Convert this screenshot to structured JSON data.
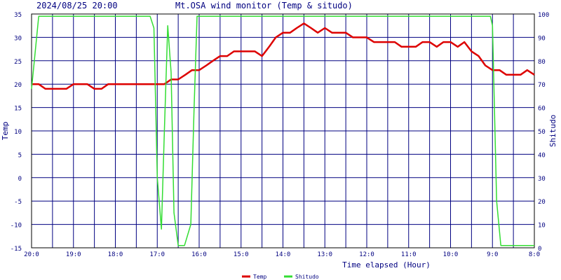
{
  "header": {
    "timestamp": "2024/08/25 20:00",
    "title": "Mt.OSA wind monitor (Temp & situdo)"
  },
  "chart_data": {
    "type": "line",
    "ylabel_left": "Temp",
    "ylabel_right": "Shitudo",
    "xlabel": "Time elapsed (Hour)",
    "x_tick_labels": [
      "20:0",
      "19:0",
      "18:0",
      "17:0",
      "16:0",
      "15:0",
      "14:0",
      "13:0",
      "12:0",
      "11:0",
      "10:0",
      "9:0",
      "8:0"
    ],
    "x_range": [
      20,
      8
    ],
    "grid": true,
    "ylim_left": [
      -15,
      35
    ],
    "yticks_left": [
      "35",
      "30",
      "25",
      "20",
      "15",
      "10",
      "5",
      "0",
      "-5",
      "-10",
      "-15"
    ],
    "ylim_right": [
      0,
      100
    ],
    "yticks_right": [
      "100",
      "90",
      "80",
      "70",
      "60",
      "50",
      "40",
      "30",
      "20",
      "10",
      "0"
    ],
    "legend_position": "bottom-center",
    "colors": {
      "background": "#ffffff",
      "plot_frame": "#000000",
      "grid": "#000080",
      "temp": "#dd0000",
      "shitudo": "#33dd33",
      "text": "#000080"
    },
    "series": [
      {
        "name": "Temp",
        "axis": "left",
        "x": [
          20.0,
          19.83,
          19.67,
          19.5,
          19.33,
          19.17,
          19.0,
          18.83,
          18.67,
          18.5,
          18.33,
          18.17,
          18.0,
          17.83,
          17.67,
          17.5,
          17.33,
          17.17,
          17.0,
          16.83,
          16.67,
          16.5,
          16.33,
          16.17,
          16.0,
          15.83,
          15.67,
          15.5,
          15.33,
          15.17,
          15.0,
          14.83,
          14.67,
          14.5,
          14.33,
          14.17,
          14.0,
          13.83,
          13.67,
          13.5,
          13.33,
          13.17,
          13.0,
          12.83,
          12.67,
          12.5,
          12.33,
          12.17,
          12.0,
          11.83,
          11.67,
          11.5,
          11.33,
          11.17,
          11.0,
          10.83,
          10.67,
          10.5,
          10.33,
          10.17,
          10.0,
          9.83,
          9.67,
          9.5,
          9.33,
          9.17,
          9.0,
          8.83,
          8.67,
          8.5,
          8.33,
          8.17,
          8.0
        ],
        "values": [
          20,
          20,
          19,
          19,
          19,
          19,
          20,
          20,
          20,
          19,
          19,
          20,
          20,
          20,
          20,
          20,
          20,
          20,
          20,
          20,
          21,
          21,
          22,
          23,
          23,
          24,
          25,
          26,
          26,
          27,
          27,
          27,
          27,
          26,
          28,
          30,
          31,
          31,
          32,
          33,
          32,
          31,
          32,
          31,
          31,
          31,
          30,
          30,
          30,
          29,
          29,
          29,
          29,
          28,
          28,
          28,
          29,
          29,
          28,
          29,
          29,
          28,
          29,
          27,
          26,
          24,
          23,
          23,
          22,
          22,
          22,
          23,
          22
        ]
      },
      {
        "name": "Shitudo",
        "axis": "right",
        "x": [
          20.0,
          19.83,
          17.17,
          17.08,
          17.0,
          16.9,
          16.83,
          16.75,
          16.67,
          16.6,
          16.5,
          16.35,
          16.2,
          16.12,
          16.05,
          15.98,
          15.8,
          9.05,
          9.0,
          8.9,
          8.8,
          8.5,
          8.0
        ],
        "values": [
          68,
          99,
          99,
          94,
          30,
          8,
          50,
          95,
          75,
          15,
          1,
          1,
          10,
          60,
          99,
          99,
          99,
          99,
          95,
          20,
          1,
          1,
          1
        ]
      }
    ]
  }
}
